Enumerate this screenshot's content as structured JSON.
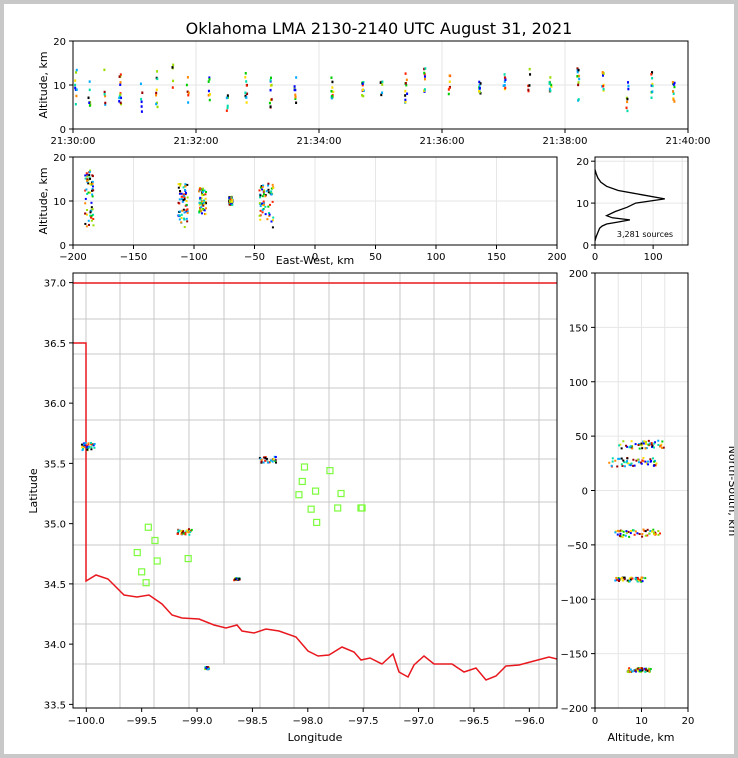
{
  "title": "Oklahoma LMA 2130-2140 UTC August 31, 2021",
  "colors": {
    "state_border": "#e8181e",
    "county": "#c8c8c8",
    "station": "#7cfc3c",
    "hist": "#000000"
  },
  "chart_data": [
    {
      "id": "time-height",
      "type": "scatter",
      "ylabel": "Altitude, km",
      "xlim": [
        "21:30:00",
        "21:40:00"
      ],
      "ylim": [
        0,
        20
      ],
      "xticks": [
        "21:30:00",
        "21:32:00",
        "21:34:00",
        "21:36:00",
        "21:38:00",
        "21:40:00"
      ],
      "yticks": [
        0,
        10,
        20
      ],
      "grid": true,
      "columns": [
        {
          "t": 0.03,
          "lo": 5,
          "hi": 14
        },
        {
          "t": 0.25,
          "lo": 4,
          "hi": 13
        },
        {
          "t": 0.5,
          "lo": 3,
          "hi": 14
        },
        {
          "t": 0.75,
          "lo": 5,
          "hi": 13
        },
        {
          "t": 1.1,
          "lo": 4,
          "hi": 12
        },
        {
          "t": 1.35,
          "lo": 5,
          "hi": 14
        },
        {
          "t": 1.6,
          "lo": 4,
          "hi": 15
        },
        {
          "t": 1.85,
          "lo": 5,
          "hi": 12
        },
        {
          "t": 2.2,
          "lo": 5,
          "hi": 12
        },
        {
          "t": 2.5,
          "lo": 4,
          "hi": 12
        },
        {
          "t": 2.8,
          "lo": 5,
          "hi": 13
        },
        {
          "t": 3.2,
          "lo": 4,
          "hi": 12
        },
        {
          "t": 3.6,
          "lo": 6,
          "hi": 12
        },
        {
          "t": 4.2,
          "lo": 7,
          "hi": 12
        },
        {
          "t": 4.7,
          "lo": 6,
          "hi": 12
        },
        {
          "t": 5.0,
          "lo": 6,
          "hi": 12
        },
        {
          "t": 5.4,
          "lo": 6,
          "hi": 13
        },
        {
          "t": 5.7,
          "lo": 8,
          "hi": 14
        },
        {
          "t": 6.1,
          "lo": 8,
          "hi": 13
        },
        {
          "t": 6.6,
          "lo": 8,
          "hi": 12
        },
        {
          "t": 7.0,
          "lo": 7,
          "hi": 13
        },
        {
          "t": 7.4,
          "lo": 8,
          "hi": 15
        },
        {
          "t": 7.75,
          "lo": 8,
          "hi": 12
        },
        {
          "t": 8.2,
          "lo": 6,
          "hi": 14
        },
        {
          "t": 8.6,
          "lo": 8,
          "hi": 14
        },
        {
          "t": 9.0,
          "lo": 4,
          "hi": 11
        },
        {
          "t": 9.4,
          "lo": 7,
          "hi": 13
        },
        {
          "t": 9.75,
          "lo": 6,
          "hi": 11
        }
      ]
    },
    {
      "id": "ew-height",
      "type": "scatter",
      "xlabel": "East-West, km",
      "ylabel": "Altitude, km",
      "xlim": [
        -200,
        200
      ],
      "ylim": [
        0,
        20
      ],
      "xticks": [
        -200,
        -150,
        -100,
        -50,
        0,
        50,
        100,
        150,
        200
      ],
      "yticks": [
        0,
        10,
        20
      ],
      "grid": true,
      "clusters": [
        {
          "x0": -190,
          "x1": -183,
          "lo": 4,
          "hi": 17
        },
        {
          "x0": -113,
          "x1": -105,
          "lo": 4,
          "hi": 14
        },
        {
          "x0": -96,
          "x1": -90,
          "lo": 7,
          "hi": 13
        },
        {
          "x0": -71,
          "x1": -68,
          "lo": 9,
          "hi": 11
        },
        {
          "x0": -46,
          "x1": -34,
          "lo": 4,
          "hi": 14
        }
      ]
    },
    {
      "id": "alt-hist",
      "type": "line",
      "annotation": "3,281 sources",
      "xlim": [
        0,
        160
      ],
      "ylim": [
        0,
        21
      ],
      "xticks": [
        0,
        100
      ],
      "yticks": [
        0,
        10,
        20
      ],
      "grid": true,
      "profile": [
        [
          0,
          1
        ],
        [
          2,
          2
        ],
        [
          5,
          3
        ],
        [
          8,
          4
        ],
        [
          12,
          4.5
        ],
        [
          20,
          5
        ],
        [
          40,
          5.5
        ],
        [
          60,
          6
        ],
        [
          30,
          6.5
        ],
        [
          20,
          7
        ],
        [
          35,
          8
        ],
        [
          55,
          9
        ],
        [
          70,
          10
        ],
        [
          120,
          11
        ],
        [
          80,
          12
        ],
        [
          40,
          13
        ],
        [
          20,
          14
        ],
        [
          10,
          15
        ],
        [
          5,
          16
        ],
        [
          2,
          17
        ],
        [
          0,
          18
        ]
      ]
    },
    {
      "id": "plan-view",
      "type": "scatter",
      "xlabel": "Longitude",
      "ylabel": "Latitude",
      "xlim": [
        -100.12,
        -95.75
      ],
      "ylim": [
        33.47,
        37.08
      ],
      "xticks": [
        -100.0,
        -99.5,
        -99.0,
        -98.5,
        -98.0,
        -97.5,
        -97.0,
        -96.5,
        -96.0
      ],
      "xtick_labels": [
        "−100.0",
        "−99.5",
        "−99.0",
        "−98.5",
        "−98.0",
        "−97.5",
        "−97.0",
        "−96.5",
        "−96.0"
      ],
      "yticks": [
        33.5,
        34.0,
        34.5,
        35.0,
        35.5,
        36.0,
        36.5,
        37.0
      ],
      "ytick_labels": [
        "33.5",
        "34.0",
        "34.5",
        "35.0",
        "35.5",
        "36.0",
        "36.5",
        "37.0"
      ],
      "stations": [
        [
          -99.44,
          34.97
        ],
        [
          -99.38,
          34.86
        ],
        [
          -99.54,
          34.76
        ],
        [
          -99.36,
          34.69
        ],
        [
          -99.5,
          34.6
        ],
        [
          -99.46,
          34.51
        ],
        [
          -99.08,
          34.71
        ],
        [
          -98.05,
          35.35
        ],
        [
          -97.97,
          35.12
        ],
        [
          -97.93,
          35.27
        ],
        [
          -97.92,
          35.01
        ],
        [
          -98.03,
          35.47
        ],
        [
          -97.8,
          35.44
        ],
        [
          -97.7,
          35.25
        ],
        [
          -97.73,
          35.13
        ],
        [
          -98.08,
          35.24
        ],
        [
          -97.52,
          35.13
        ],
        [
          -97.51,
          35.13
        ]
      ],
      "clusters": [
        {
          "lon": -99.98,
          "lat": 35.64,
          "w": 0.12,
          "h": 0.06
        },
        {
          "lon": -99.11,
          "lat": 34.93,
          "w": 0.13,
          "h": 0.05
        },
        {
          "lon": -98.36,
          "lat": 35.53,
          "w": 0.15,
          "h": 0.05
        },
        {
          "lon": -98.64,
          "lat": 34.54,
          "w": 0.05,
          "h": 0.02
        },
        {
          "lon": -98.91,
          "lat": 33.8,
          "w": 0.04,
          "h": 0.02
        }
      ]
    },
    {
      "id": "ns-height",
      "type": "scatter",
      "xlabel": "Altitude, km",
      "ylabel": "North-South, km",
      "xlim": [
        0,
        20
      ],
      "ylim": [
        -200,
        200
      ],
      "xticks": [
        0,
        10,
        20
      ],
      "yticks": [
        -200,
        -150,
        -100,
        -50,
        0,
        50,
        100,
        150,
        200
      ],
      "ytick_labels": [
        "−200",
        "−150",
        "−100",
        "−50",
        "0",
        "50",
        "100",
        "150",
        "200"
      ],
      "grid": true,
      "clusters": [
        {
          "a0": 5,
          "a1": 15,
          "y0": 38,
          "y1": 46
        },
        {
          "a0": 3,
          "a1": 14,
          "y0": 22,
          "y1": 30
        },
        {
          "a0": 4,
          "a1": 14,
          "y0": -43,
          "y1": -35
        },
        {
          "a0": 4,
          "a1": 11,
          "y0": -84,
          "y1": -80
        },
        {
          "a0": 7,
          "a1": 12,
          "y0": -167,
          "y1": -163
        }
      ]
    }
  ]
}
